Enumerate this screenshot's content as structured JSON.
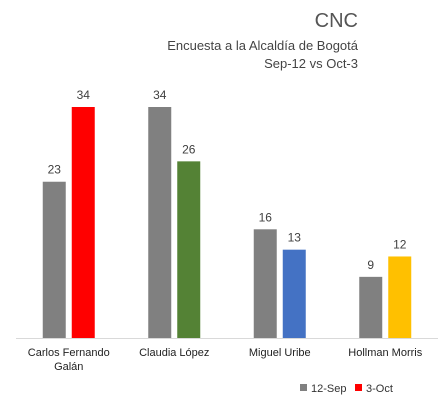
{
  "chart_data": {
    "type": "bar",
    "title": "CNC",
    "subtitle_lines": [
      "Encuesta a la Alcaldía de Bogotá",
      "Sep-12 vs Oct-3"
    ],
    "categories": [
      "Carlos Fernando Galán",
      "Claudia López",
      "Miguel Uribe",
      "Hollman Morris"
    ],
    "category_label_lines": [
      [
        "Carlos Fernando",
        "Galán"
      ],
      [
        "Claudia López"
      ],
      [
        "Miguel Uribe"
      ],
      [
        "Hollman Morris"
      ]
    ],
    "series": [
      {
        "name": "12-Sep",
        "values": [
          23,
          34,
          16,
          9
        ],
        "color": "#808080"
      },
      {
        "name": "3-Oct",
        "values": [
          34,
          26,
          13,
          12
        ],
        "colors": [
          "#ff0000",
          "#548235",
          "#4472c4",
          "#ffc000"
        ],
        "legend_color": "#ff0000"
      }
    ],
    "ylim": [
      0,
      34
    ],
    "grid": false,
    "legend_position": "bottom-right"
  }
}
